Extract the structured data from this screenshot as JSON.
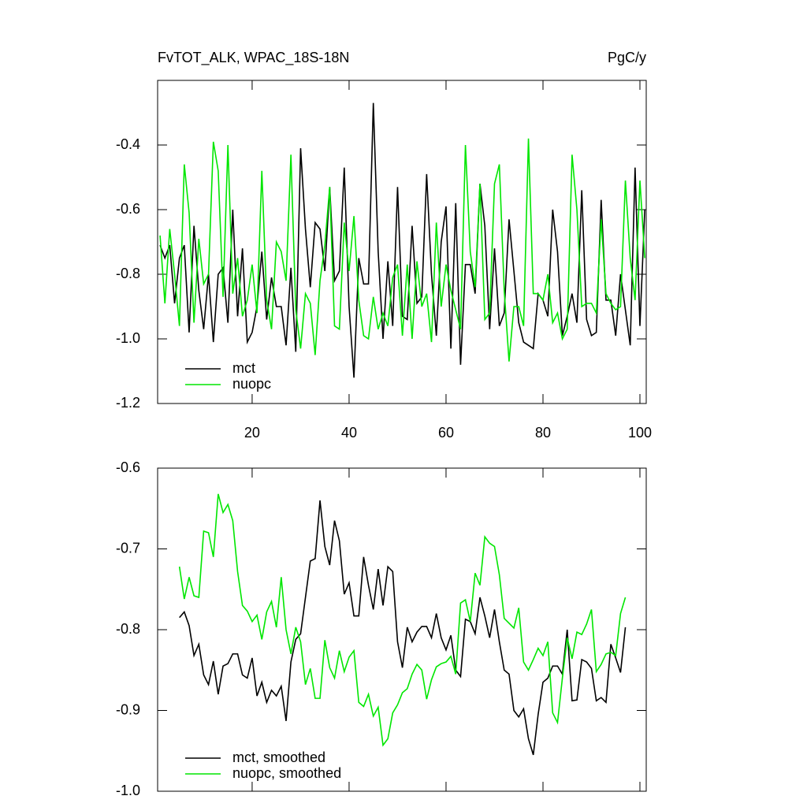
{
  "chart_data": [
    {
      "type": "line",
      "title": "FvTOT_ALK, WPAC_18S-18N",
      "units": "PgC/y",
      "x": [
        1,
        2,
        3,
        4,
        5,
        6,
        7,
        8,
        9,
        10,
        11,
        12,
        13,
        14,
        15,
        16,
        17,
        18,
        19,
        20,
        21,
        22,
        23,
        24,
        25,
        26,
        27,
        28,
        29,
        30,
        31,
        32,
        33,
        34,
        35,
        36,
        37,
        38,
        39,
        40,
        41,
        42,
        43,
        44,
        45,
        46,
        47,
        48,
        49,
        50,
        51,
        52,
        53,
        54,
        55,
        56,
        57,
        58,
        59,
        60,
        61,
        62,
        63,
        64,
        65,
        66,
        67,
        68,
        69,
        70,
        71,
        72,
        73,
        74,
        75,
        76,
        77,
        78,
        79,
        80,
        81,
        82,
        83,
        84,
        85,
        86,
        87,
        88,
        89,
        90,
        91,
        92,
        93,
        94,
        95,
        96,
        97,
        98,
        99,
        100,
        101
      ],
      "series": [
        {
          "name": "mct",
          "color": "#000000",
          "values": [
            -0.71,
            -0.75,
            -0.71,
            -0.89,
            -0.75,
            -0.71,
            -0.98,
            -0.65,
            -0.85,
            -0.97,
            -0.8,
            -1.01,
            -0.8,
            -0.78,
            -0.95,
            -0.6,
            -0.93,
            -0.72,
            -1.01,
            -0.98,
            -0.9,
            -0.73,
            -0.94,
            -0.81,
            -0.9,
            -0.9,
            -1.02,
            -0.78,
            -1.04,
            -0.41,
            -0.66,
            -0.84,
            -0.64,
            -0.66,
            -0.79,
            -0.53,
            -0.82,
            -0.79,
            -0.47,
            -0.9,
            -1.12,
            -0.75,
            -0.83,
            -0.83,
            -0.27,
            -0.73,
            -1.0,
            -0.76,
            -0.96,
            -0.53,
            -0.93,
            -0.94,
            -0.65,
            -0.89,
            -0.87,
            -0.49,
            -0.8,
            -0.99,
            -0.7,
            -0.59,
            -1.03,
            -0.58,
            -1.08,
            -0.77,
            -0.77,
            -0.86,
            -0.52,
            -0.65,
            -0.97,
            -0.72,
            -0.96,
            -0.92,
            -0.63,
            -0.79,
            -0.95,
            -1.01,
            -1.02,
            -1.03,
            -0.86,
            -0.88,
            -0.93,
            -0.6,
            -0.73,
            -0.99,
            -0.93,
            -0.86,
            -0.95,
            -0.54,
            -0.94,
            -0.99,
            -0.98,
            -0.57,
            -0.88,
            -0.88,
            -0.99,
            -0.8,
            -0.91,
            -1.02,
            -0.47,
            -0.96,
            -0.6
          ]
        },
        {
          "name": "nuopc",
          "color": "#00e600",
          "values": [
            -0.68,
            -0.89,
            -0.66,
            -0.8,
            -0.96,
            -0.46,
            -0.61,
            -0.95,
            -0.69,
            -0.83,
            -0.8,
            -0.39,
            -0.48,
            -0.87,
            -0.4,
            -0.86,
            -0.75,
            -0.93,
            -0.88,
            -0.77,
            -0.92,
            -0.48,
            -0.88,
            -0.97,
            -0.7,
            -0.73,
            -0.82,
            -0.43,
            -0.91,
            -1.03,
            -0.86,
            -0.89,
            -1.05,
            -0.82,
            -0.71,
            -0.53,
            -0.96,
            -0.97,
            -0.64,
            -0.79,
            -0.62,
            -0.88,
            -0.99,
            -1.0,
            -0.87,
            -0.97,
            -0.92,
            -0.96,
            -0.81,
            -0.77,
            -0.99,
            -0.77,
            -1.0,
            -0.76,
            -0.9,
            -0.86,
            -1.01,
            -0.64,
            -0.9,
            -0.77,
            -0.85,
            -0.91,
            -0.97,
            -0.4,
            -0.73,
            -0.84,
            -0.52,
            -0.94,
            -0.92,
            -0.52,
            -0.46,
            -0.85,
            -1.07,
            -0.9,
            -0.9,
            -0.96,
            -0.38,
            -0.86,
            -0.86,
            -0.88,
            -0.8,
            -0.95,
            -0.92,
            -1.0,
            -0.97,
            -0.43,
            -0.6,
            -0.9,
            -0.89,
            -0.89,
            -0.92,
            -0.63,
            -0.86,
            -0.89,
            -0.91,
            -0.9,
            -0.51,
            -0.75,
            -0.88,
            -0.51,
            -0.75
          ]
        }
      ],
      "xlim": [
        0.5,
        101.3
      ],
      "xticks": [
        20,
        40,
        60,
        80,
        100
      ],
      "ylim": [
        -1.2,
        -0.2
      ],
      "yticks": [
        -1.2,
        {
          "value": -1.0,
          "label": "-1.0"
        },
        -0.8,
        -0.6,
        -0.4
      ]
    },
    {
      "type": "line",
      "x": [
        5,
        6,
        7,
        8,
        9,
        10,
        11,
        12,
        13,
        14,
        15,
        16,
        17,
        18,
        19,
        20,
        21,
        22,
        23,
        24,
        25,
        26,
        27,
        28,
        29,
        30,
        31,
        32,
        33,
        34,
        35,
        36,
        37,
        38,
        39,
        40,
        41,
        42,
        43,
        44,
        45,
        46,
        47,
        48,
        49,
        50,
        51,
        52,
        53,
        54,
        55,
        56,
        57,
        58,
        59,
        60,
        61,
        62,
        63,
        64,
        65,
        66,
        67,
        68,
        69,
        70,
        71,
        72,
        73,
        74,
        75,
        76,
        77,
        78,
        79,
        80,
        81,
        82,
        83,
        84,
        85,
        86,
        87,
        88,
        89,
        90,
        91,
        92,
        93,
        94,
        95,
        96,
        97
      ],
      "series": [
        {
          "name": "mct, smoothed",
          "color": "#000000",
          "values": [
            -0.785,
            -0.778,
            -0.795,
            -0.832,
            -0.818,
            -0.856,
            -0.868,
            -0.839,
            -0.88,
            -0.845,
            -0.842,
            -0.83,
            -0.83,
            -0.856,
            -0.86,
            -0.835,
            -0.882,
            -0.865,
            -0.89,
            -0.875,
            -0.882,
            -0.87,
            -0.913,
            -0.84,
            -0.812,
            -0.805,
            -0.76,
            -0.715,
            -0.712,
            -0.64,
            -0.697,
            -0.72,
            -0.665,
            -0.69,
            -0.756,
            -0.742,
            -0.783,
            -0.783,
            -0.71,
            -0.745,
            -0.775,
            -0.725,
            -0.77,
            -0.722,
            -0.728,
            -0.815,
            -0.847,
            -0.797,
            -0.815,
            -0.803,
            -0.796,
            -0.796,
            -0.81,
            -0.78,
            -0.81,
            -0.825,
            -0.807,
            -0.85,
            -0.858,
            -0.787,
            -0.79,
            -0.805,
            -0.76,
            -0.783,
            -0.81,
            -0.775,
            -0.815,
            -0.85,
            -0.855,
            -0.9,
            -0.908,
            -0.898,
            -0.935,
            -0.955,
            -0.905,
            -0.865,
            -0.86,
            -0.845,
            -0.845,
            -0.855,
            -0.8,
            -0.888,
            -0.887,
            -0.837,
            -0.84,
            -0.848,
            -0.888,
            -0.884,
            -0.89,
            -0.818,
            -0.835,
            -0.853,
            -0.797
          ]
        },
        {
          "name": "nuopc, smoothed",
          "color": "#00e600",
          "values": [
            -0.722,
            -0.762,
            -0.735,
            -0.758,
            -0.76,
            -0.678,
            -0.68,
            -0.71,
            -0.632,
            -0.655,
            -0.645,
            -0.665,
            -0.728,
            -0.77,
            -0.777,
            -0.79,
            -0.782,
            -0.812,
            -0.778,
            -0.765,
            -0.797,
            -0.735,
            -0.8,
            -0.83,
            -0.797,
            -0.815,
            -0.868,
            -0.848,
            -0.885,
            -0.885,
            -0.813,
            -0.847,
            -0.86,
            -0.826,
            -0.852,
            -0.834,
            -0.826,
            -0.89,
            -0.895,
            -0.88,
            -0.907,
            -0.896,
            -0.943,
            -0.935,
            -0.903,
            -0.893,
            -0.878,
            -0.873,
            -0.855,
            -0.843,
            -0.85,
            -0.886,
            -0.862,
            -0.846,
            -0.842,
            -0.84,
            -0.833,
            -0.855,
            -0.767,
            -0.763,
            -0.79,
            -0.73,
            -0.745,
            -0.685,
            -0.693,
            -0.697,
            -0.732,
            -0.786,
            -0.792,
            -0.798,
            -0.773,
            -0.84,
            -0.85,
            -0.837,
            -0.823,
            -0.832,
            -0.815,
            -0.903,
            -0.915,
            -0.86,
            -0.81,
            -0.836,
            -0.803,
            -0.806,
            -0.793,
            -0.775,
            -0.852,
            -0.843,
            -0.83,
            -0.828,
            -0.832,
            -0.78,
            -0.76
          ]
        }
      ],
      "xlim": [
        0.5,
        101.3
      ],
      "xticks": [
        20,
        40,
        60,
        80,
        100
      ],
      "ylim": [
        -1.0,
        -0.6
      ],
      "yticks": [
        {
          "value": -1.0,
          "label": "-1.0"
        },
        -0.9,
        -0.8,
        -0.7,
        -0.6
      ]
    }
  ]
}
